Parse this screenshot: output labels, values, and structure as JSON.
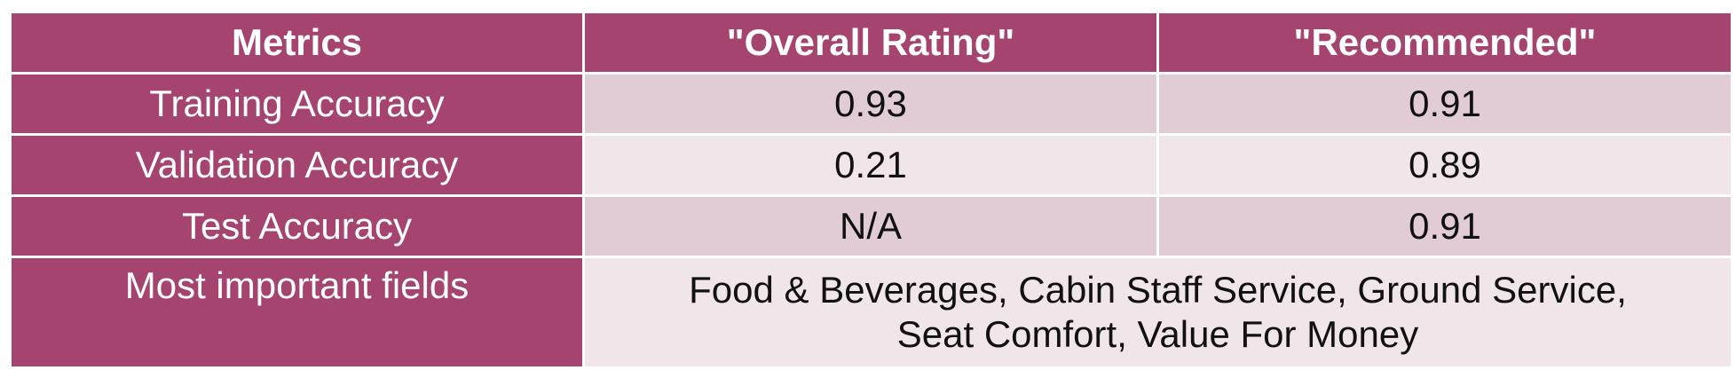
{
  "table": {
    "headers": [
      "Metrics",
      "\"Overall Rating\"",
      "\"Recommended\""
    ],
    "rows": [
      {
        "label": "Training Accuracy",
        "overall_rating": "0.93",
        "recommended": "0.91"
      },
      {
        "label": "Validation Accuracy",
        "overall_rating": "0.21",
        "recommended": "0.89"
      },
      {
        "label": "Test Accuracy",
        "overall_rating": "N/A",
        "recommended": "0.91"
      },
      {
        "label": "Most important fields",
        "merged_value_lines": [
          "Food & Beverages, Cabin Staff Service, Ground Service,",
          "Seat Comfort, Value For Money"
        ]
      }
    ]
  },
  "colors": {
    "header_bg": "#a4446f",
    "header_text": "#ffffff",
    "row_odd_bg": "#e1ccd5",
    "row_even_bg": "#f0e6ea",
    "cell_text": "#111111"
  }
}
